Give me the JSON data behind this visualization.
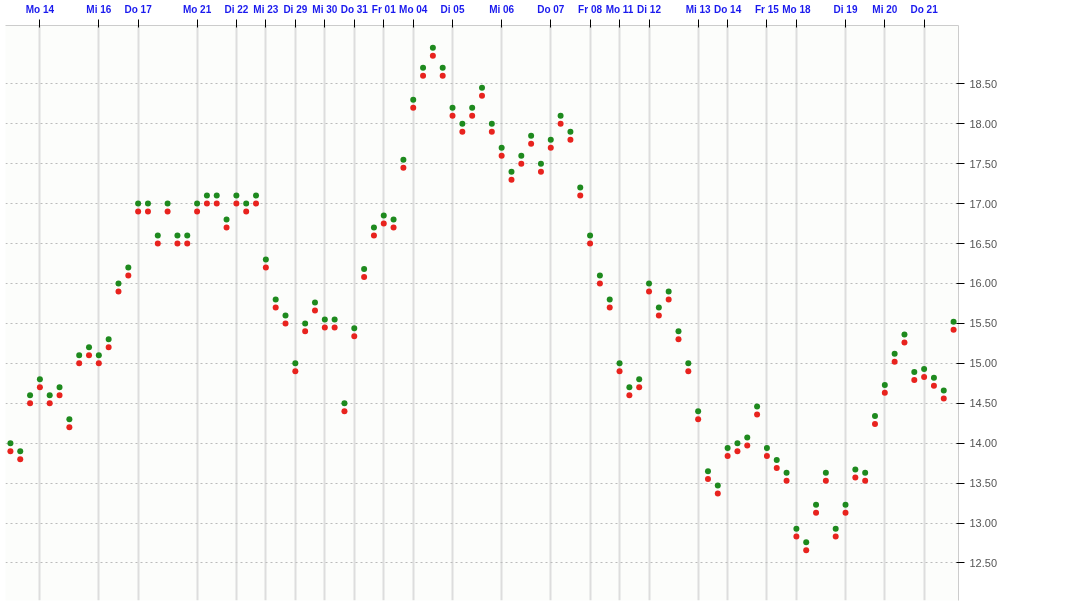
{
  "chart_data": {
    "type": "scatter",
    "categories": [
      null,
      null,
      null,
      "Mo 14",
      null,
      null,
      null,
      null,
      null,
      "Mi 16",
      null,
      null,
      null,
      "Do 17",
      null,
      null,
      null,
      null,
      null,
      "Mo 21",
      null,
      null,
      null,
      "Di 22",
      null,
      null,
      "Mi 23",
      null,
      null,
      "Di 29",
      null,
      null,
      "Mi 30",
      null,
      null,
      "Do 31",
      null,
      null,
      "Fr 01",
      null,
      null,
      "Mo 04",
      null,
      null,
      null,
      "Di 05",
      null,
      null,
      null,
      null,
      "Mi 06",
      null,
      null,
      null,
      null,
      "Do 07",
      null,
      null,
      null,
      "Fr 08",
      null,
      null,
      "Mo 11",
      null,
      null,
      "Di 12",
      null,
      null,
      null,
      null,
      "Mi 13",
      null,
      null,
      "Do 14",
      null,
      null,
      null,
      "Fr 15",
      null,
      null,
      "Mo 18",
      null,
      null,
      null,
      null,
      "Di 19",
      null,
      null,
      null,
      "Mi 20",
      null,
      null,
      null,
      "Do 21",
      null,
      null,
      null
    ],
    "series": [
      {
        "color": "#e8231e",
        "values": [
          13.9,
          13.8,
          14.5,
          14.7,
          14.5,
          14.6,
          14.2,
          15.0,
          15.1,
          15.0,
          15.2,
          15.9,
          16.1,
          16.9,
          16.9,
          16.5,
          16.9,
          16.5,
          16.5,
          16.9,
          17.0,
          17.0,
          16.7,
          17.0,
          16.9,
          17.0,
          16.2,
          15.7,
          15.5,
          14.9,
          15.4,
          15.66,
          15.45,
          15.45,
          14.4,
          15.34,
          16.08,
          16.6,
          16.75,
          16.7,
          17.45,
          18.2,
          18.6,
          18.85,
          18.6,
          18.1,
          17.9,
          18.1,
          18.35,
          17.9,
          17.6,
          17.3,
          17.5,
          17.75,
          17.4,
          17.7,
          18.0,
          17.8,
          17.1,
          16.5,
          16.0,
          15.7,
          14.9,
          14.6,
          14.7,
          15.9,
          15.6,
          15.8,
          15.3,
          14.9,
          14.3,
          13.55,
          13.37,
          13.84,
          13.9,
          13.97,
          14.36,
          13.84,
          13.69,
          13.53,
          12.83,
          12.66,
          13.13,
          13.53,
          12.83,
          13.13,
          13.57,
          13.53,
          14.24,
          14.63,
          15.02,
          15.26,
          14.79,
          14.83,
          14.72,
          14.56,
          15.42
        ]
      },
      {
        "color": "#1e8a1e",
        "values": [
          14.0,
          13.9,
          14.6,
          14.8,
          14.6,
          14.7,
          14.3,
          15.1,
          15.2,
          15.1,
          15.3,
          16.0,
          16.2,
          17.0,
          17.0,
          16.6,
          17.0,
          16.6,
          16.6,
          17.0,
          17.1,
          17.1,
          16.8,
          17.1,
          17.0,
          17.1,
          16.3,
          15.8,
          15.6,
          15.0,
          15.5,
          15.76,
          15.55,
          15.55,
          14.5,
          15.44,
          16.18,
          16.7,
          16.85,
          16.8,
          17.55,
          18.3,
          18.7,
          18.95,
          18.7,
          18.2,
          18.0,
          18.2,
          18.45,
          18.0,
          17.7,
          17.4,
          17.6,
          17.85,
          17.5,
          17.8,
          18.1,
          17.9,
          17.2,
          16.6,
          16.1,
          15.8,
          15.0,
          14.7,
          14.8,
          16.0,
          15.7,
          15.9,
          15.4,
          15.0,
          14.4,
          13.65,
          13.47,
          13.94,
          14.0,
          14.07,
          14.46,
          13.94,
          13.79,
          13.63,
          12.93,
          12.76,
          13.23,
          13.63,
          12.93,
          13.23,
          13.67,
          13.63,
          14.34,
          14.73,
          15.12,
          15.36,
          14.89,
          14.93,
          14.82,
          14.66,
          15.52
        ]
      }
    ],
    "ylim": [
      12.03,
      19.23
    ],
    "yticks": [
      {
        "value": 12.5,
        "label": "12.50"
      },
      {
        "value": 13,
        "label": "13.00"
      },
      {
        "value": 13.5,
        "label": "13.50"
      },
      {
        "value": 14,
        "label": "14.00"
      },
      {
        "value": 14.5,
        "label": "14.50"
      },
      {
        "value": 15,
        "label": "15.00"
      },
      {
        "value": 15.5,
        "label": "15.50"
      },
      {
        "value": 16,
        "label": "16.00"
      },
      {
        "value": 16.5,
        "label": "16.50"
      },
      {
        "value": 17,
        "label": "17.00"
      },
      {
        "value": 17.5,
        "label": "17.50"
      },
      {
        "value": 18,
        "label": "18.00"
      },
      {
        "value": 18.5,
        "label": "18.50"
      }
    ],
    "grid": true,
    "marker": "circle"
  }
}
